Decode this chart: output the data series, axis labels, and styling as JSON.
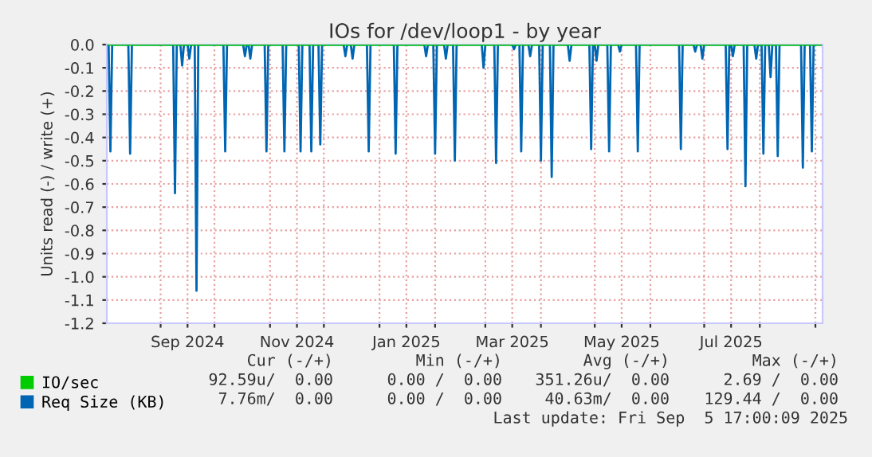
{
  "chart_data": {
    "type": "line",
    "title": "IOs for /dev/loop1 - by year",
    "ylabel": "Units read (-) / write (+)",
    "xlim": [
      "2024-08-02",
      "2025-09-05"
    ],
    "xticks": [
      {
        "value": "2024-09-01",
        "label": null
      },
      {
        "value": "2024-09-16",
        "label": "Sep 2024"
      },
      {
        "value": "2024-10-01",
        "label": null
      },
      {
        "value": "2024-11-01",
        "label": null
      },
      {
        "value": "2024-11-16",
        "label": "Nov 2024"
      },
      {
        "value": "2024-12-01",
        "label": null
      },
      {
        "value": "2025-01-01",
        "label": null
      },
      {
        "value": "2025-01-16",
        "label": "Jan 2025"
      },
      {
        "value": "2025-02-01",
        "label": null
      },
      {
        "value": "2025-03-01",
        "label": null
      },
      {
        "value": "2025-03-16",
        "label": "Mar 2025"
      },
      {
        "value": "2025-04-01",
        "label": null
      },
      {
        "value": "2025-05-01",
        "label": null
      },
      {
        "value": "2025-05-16",
        "label": "May 2025"
      },
      {
        "value": "2025-06-01",
        "label": null
      },
      {
        "value": "2025-07-01",
        "label": null
      },
      {
        "value": "2025-07-16",
        "label": "Jul 2025"
      },
      {
        "value": "2025-08-01",
        "label": null
      },
      {
        "value": "2025-09-01",
        "label": null
      }
    ],
    "ylim": [
      -1.2,
      0.0
    ],
    "yticks": [
      {
        "value": 0,
        "label": "0.0"
      },
      -0.1,
      -0.2,
      -0.3,
      -0.4,
      -0.5,
      -0.6,
      -0.7,
      -0.8,
      -0.9,
      {
        "value": -1,
        "label": "-1.0"
      },
      -1.1,
      -1.2
    ],
    "grid": true,
    "legend": "bottom left",
    "series": [
      {
        "name": "IO/sec",
        "color": "#00cc00",
        "x": [
          "2024-08-02",
          "2025-09-04"
        ],
        "values": [
          0,
          0
        ]
      },
      {
        "name": "Req Size (KB)",
        "color": "#0066b3",
        "x": [
          "2024-08-03",
          "2024-08-04",
          "2024-08-05",
          "2024-08-14",
          "2024-08-15",
          "2024-08-16",
          "2024-09-08",
          "2024-09-09",
          "2024-09-10",
          "2024-09-12",
          "2024-09-13",
          "2024-09-14",
          "2024-09-16",
          "2024-09-17",
          "2024-09-18",
          "2024-09-20",
          "2024-09-21",
          "2024-09-22",
          "2024-10-06",
          "2024-10-07",
          "2024-10-08",
          "2024-10-17",
          "2024-10-18",
          "2024-10-19",
          "2024-10-20",
          "2024-10-21",
          "2024-10-22",
          "2024-10-29",
          "2024-10-30",
          "2024-10-31",
          "2024-11-08",
          "2024-11-09",
          "2024-11-10",
          "2024-11-17",
          "2024-11-18",
          "2024-11-19",
          "2024-11-23",
          "2024-11-24",
          "2024-11-25",
          "2024-11-28",
          "2024-11-29",
          "2024-11-30",
          "2024-12-12",
          "2024-12-13",
          "2024-12-14",
          "2024-12-16",
          "2024-12-17",
          "2024-12-18",
          "2024-12-25",
          "2024-12-26",
          "2024-12-27",
          "2025-01-09",
          "2025-01-10",
          "2025-01-11",
          "2025-01-26",
          "2025-01-27",
          "2025-01-28",
          "2025-01-31",
          "2025-02-01",
          "2025-02-02",
          "2025-02-06",
          "2025-02-07",
          "2025-02-08",
          "2025-02-11",
          "2025-02-12",
          "2025-02-13",
          "2025-02-27",
          "2025-02-28",
          "2025-03-01",
          "2025-03-06",
          "2025-03-07",
          "2025-03-08",
          "2025-03-16",
          "2025-03-17",
          "2025-03-18",
          "2025-03-20",
          "2025-03-21",
          "2025-03-22",
          "2025-03-25",
          "2025-03-26",
          "2025-03-27",
          "2025-03-31",
          "2025-04-01",
          "2025-04-02",
          "2025-04-06",
          "2025-04-07",
          "2025-04-08",
          "2025-04-16",
          "2025-04-17",
          "2025-04-18",
          "2025-04-28",
          "2025-04-29",
          "2025-04-30",
          "2025-05-01",
          "2025-05-02",
          "2025-05-03",
          "2025-05-08",
          "2025-05-09",
          "2025-05-10",
          "2025-05-14",
          "2025-05-15",
          "2025-05-16",
          "2025-05-24",
          "2025-05-25",
          "2025-05-26",
          "2025-06-17",
          "2025-06-18",
          "2025-06-19",
          "2025-06-25",
          "2025-06-26",
          "2025-06-27",
          "2025-06-29",
          "2025-06-30",
          "2025-07-01",
          "2025-07-13",
          "2025-07-14",
          "2025-07-15",
          "2025-07-16",
          "2025-07-17",
          "2025-07-18",
          "2025-07-23",
          "2025-07-24",
          "2025-07-25",
          "2025-07-29",
          "2025-07-30",
          "2025-07-31",
          "2025-08-02",
          "2025-08-03",
          "2025-08-04",
          "2025-08-06",
          "2025-08-07",
          "2025-08-08",
          "2025-08-10",
          "2025-08-11",
          "2025-08-12",
          "2025-08-24",
          "2025-08-25",
          "2025-08-26",
          "2025-08-29",
          "2025-08-30",
          "2025-08-31",
          "2025-09-04"
        ],
        "values": [
          0,
          -0.46,
          0,
          0,
          -0.47,
          0,
          0,
          -0.64,
          0,
          0,
          -0.09,
          0,
          0,
          -0.06,
          0,
          0,
          -1.06,
          0,
          0,
          -0.46,
          0,
          0,
          -0.05,
          0,
          0,
          -0.06,
          0,
          0,
          -0.46,
          0,
          0,
          -0.46,
          0,
          0,
          -0.46,
          0,
          0,
          -0.46,
          0,
          0,
          -0.43,
          0,
          0,
          -0.05,
          0,
          0,
          -0.06,
          0,
          0,
          -0.46,
          0,
          0,
          -0.47,
          0,
          0,
          -0.05,
          0,
          0,
          -0.47,
          0,
          0,
          -0.06,
          0,
          0,
          -0.5,
          0,
          0,
          -0.1,
          0,
          0,
          -0.51,
          0,
          0,
          -0.02,
          0,
          0,
          -0.46,
          0,
          0,
          -0.05,
          0,
          0,
          -0.5,
          0,
          0,
          -0.57,
          0,
          0,
          -0.07,
          0,
          0,
          -0.45,
          0,
          0,
          -0.07,
          0,
          0,
          -0.46,
          0,
          0,
          -0.03,
          0,
          0,
          -0.46,
          0,
          0,
          -0.45,
          0,
          0,
          -0.03,
          0,
          0,
          -0.06,
          0,
          0,
          -0.45,
          0,
          0,
          -0.05,
          0,
          0,
          -0.61,
          0,
          0,
          -0.06,
          0,
          0,
          -0.47,
          0,
          0,
          -0.14,
          0,
          0,
          -0.48,
          0,
          0,
          -0.53,
          0,
          0,
          -0.46,
          0,
          0
        ]
      }
    ],
    "annotations": [
      "Cur (-/+)",
      "Min (-/+)",
      "Avg (-/+)",
      "Max (-/+)",
      "92.59u/  0.00",
      "0.00 /  0.00",
      "351.26u/  0.00",
      "2.69 /  0.00",
      "7.76m/  0.00",
      "0.00 /  0.00",
      "40.63m/  0.00",
      "129.44 /  0.00",
      "Last update: Fri Sep  5 17:00:09 2025"
    ]
  }
}
